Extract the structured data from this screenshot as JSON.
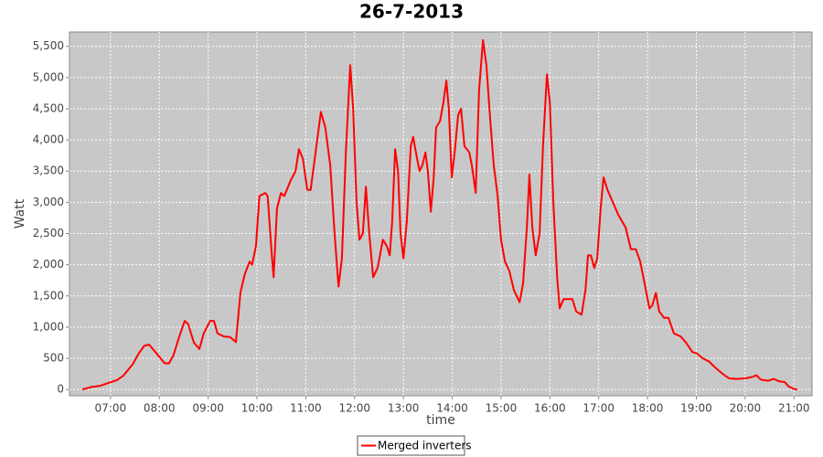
{
  "chart_data": {
    "type": "line",
    "title": "26-7-2013",
    "x_label": "time",
    "y_label": "Watt",
    "x": [
      6.42,
      6.61,
      6.79,
      6.94,
      7.13,
      7.26,
      7.45,
      7.58,
      7.69,
      7.79,
      7.92,
      8.11,
      8.2,
      8.29,
      8.41,
      8.52,
      8.59,
      8.71,
      8.82,
      8.91,
      9.04,
      9.12,
      9.19,
      9.32,
      9.45,
      9.57,
      9.66,
      9.75,
      9.85,
      9.9,
      9.98,
      10.05,
      10.17,
      10.22,
      10.3,
      10.34,
      10.41,
      10.49,
      10.56,
      10.69,
      10.79,
      10.86,
      10.94,
      11.03,
      11.1,
      11.2,
      11.31,
      11.4,
      11.5,
      11.59,
      11.67,
      11.74,
      11.82,
      11.91,
      11.97,
      12.04,
      12.1,
      12.17,
      12.23,
      12.3,
      12.38,
      12.47,
      12.58,
      12.66,
      12.72,
      12.77,
      12.83,
      12.89,
      12.94,
      13.0,
      13.07,
      13.15,
      13.2,
      13.28,
      13.33,
      13.39,
      13.45,
      13.5,
      13.56,
      13.62,
      13.67,
      13.75,
      13.82,
      13.88,
      13.93,
      13.99,
      14.05,
      14.12,
      14.18,
      14.25,
      14.35,
      14.4,
      14.48,
      14.55,
      14.63,
      14.7,
      14.78,
      14.85,
      14.93,
      15.0,
      15.08,
      15.17,
      15.26,
      15.38,
      15.45,
      15.53,
      15.58,
      15.64,
      15.71,
      15.79,
      15.86,
      15.94,
      16.0,
      16.07,
      16.15,
      16.2,
      16.28,
      16.39,
      16.46,
      16.54,
      16.65,
      16.73,
      16.78,
      16.84,
      16.91,
      16.97,
      17.04,
      17.1,
      17.18,
      17.29,
      17.4,
      17.55,
      17.66,
      17.76,
      17.85,
      17.94,
      18.04,
      18.1,
      18.17,
      18.24,
      18.34,
      18.43,
      18.54,
      18.68,
      18.79,
      18.92,
      19.01,
      19.13,
      19.26,
      19.39,
      19.54,
      19.67,
      19.82,
      20.01,
      20.14,
      20.23,
      20.32,
      20.47,
      20.59,
      20.7,
      20.81,
      20.89,
      21.0,
      21.07
    ],
    "series": [
      {
        "name": "Merged inverters",
        "color": "#ff0000",
        "values": [
          0,
          40,
          60,
          100,
          150,
          220,
          400,
          580,
          700,
          720,
          600,
          420,
          420,
          550,
          850,
          1100,
          1050,
          750,
          650,
          900,
          1100,
          1100,
          900,
          850,
          840,
          760,
          1550,
          1850,
          2050,
          2000,
          2300,
          3100,
          3150,
          3100,
          2200,
          1800,
          2900,
          3150,
          3100,
          3350,
          3500,
          3850,
          3700,
          3200,
          3200,
          3800,
          4450,
          4200,
          3600,
          2500,
          1650,
          2100,
          3800,
          5200,
          4500,
          3000,
          2400,
          2500,
          3250,
          2500,
          1800,
          1950,
          2400,
          2300,
          2150,
          2700,
          3850,
          3500,
          2500,
          2100,
          2700,
          3900,
          4050,
          3700,
          3500,
          3600,
          3800,
          3500,
          2850,
          3400,
          4200,
          4300,
          4600,
          4950,
          4500,
          3400,
          3800,
          4400,
          4500,
          3900,
          3800,
          3600,
          3150,
          4800,
          5600,
          5200,
          4300,
          3600,
          3100,
          2400,
          2050,
          1900,
          1600,
          1400,
          1700,
          2600,
          3450,
          2600,
          2150,
          2500,
          3900,
          5050,
          4600,
          3000,
          1800,
          1300,
          1450,
          1450,
          1450,
          1250,
          1200,
          1600,
          2150,
          2150,
          1950,
          2100,
          2900,
          3400,
          3200,
          3000,
          2800,
          2600,
          2250,
          2250,
          2050,
          1700,
          1300,
          1350,
          1550,
          1250,
          1150,
          1150,
          900,
          850,
          750,
          600,
          580,
          500,
          450,
          350,
          250,
          180,
          170,
          180,
          200,
          230,
          160,
          140,
          170,
          130,
          120,
          50,
          10,
          0
        ]
      }
    ],
    "xlim": [
      6.16,
      21.37
    ],
    "xticks": [
      {
        "value": 7,
        "label": "07:00"
      },
      {
        "value": 8,
        "label": "08:00"
      },
      {
        "value": 9,
        "label": "09:00"
      },
      {
        "value": 10,
        "label": "10:00"
      },
      {
        "value": 11,
        "label": "11:00"
      },
      {
        "value": 12,
        "label": "12:00"
      },
      {
        "value": 13,
        "label": "13:00"
      },
      {
        "value": 14,
        "label": "14:00"
      },
      {
        "value": 15,
        "label": "15:00"
      },
      {
        "value": 16,
        "label": "16:00"
      },
      {
        "value": 17,
        "label": "17:00"
      },
      {
        "value": 18,
        "label": "18:00"
      },
      {
        "value": 19,
        "label": "19:00"
      },
      {
        "value": 20,
        "label": "20:00"
      },
      {
        "value": 21,
        "label": "21:00"
      }
    ],
    "ylim": [
      -100,
      5730
    ],
    "yticks": [
      0,
      500,
      {
        "value": 1000,
        "label": "1,000"
      },
      {
        "value": 1500,
        "label": "1,500"
      },
      {
        "value": 2000,
        "label": "2,000"
      },
      {
        "value": 2500,
        "label": "2,500"
      },
      {
        "value": 3000,
        "label": "3,000"
      },
      {
        "value": 3500,
        "label": "3,500"
      },
      {
        "value": 4000,
        "label": "4,000"
      },
      {
        "value": 4500,
        "label": "4,500"
      },
      {
        "value": 5000,
        "label": "5,000"
      },
      {
        "value": 5500,
        "label": "5,500"
      }
    ],
    "grid": true,
    "legend": "bottom"
  }
}
